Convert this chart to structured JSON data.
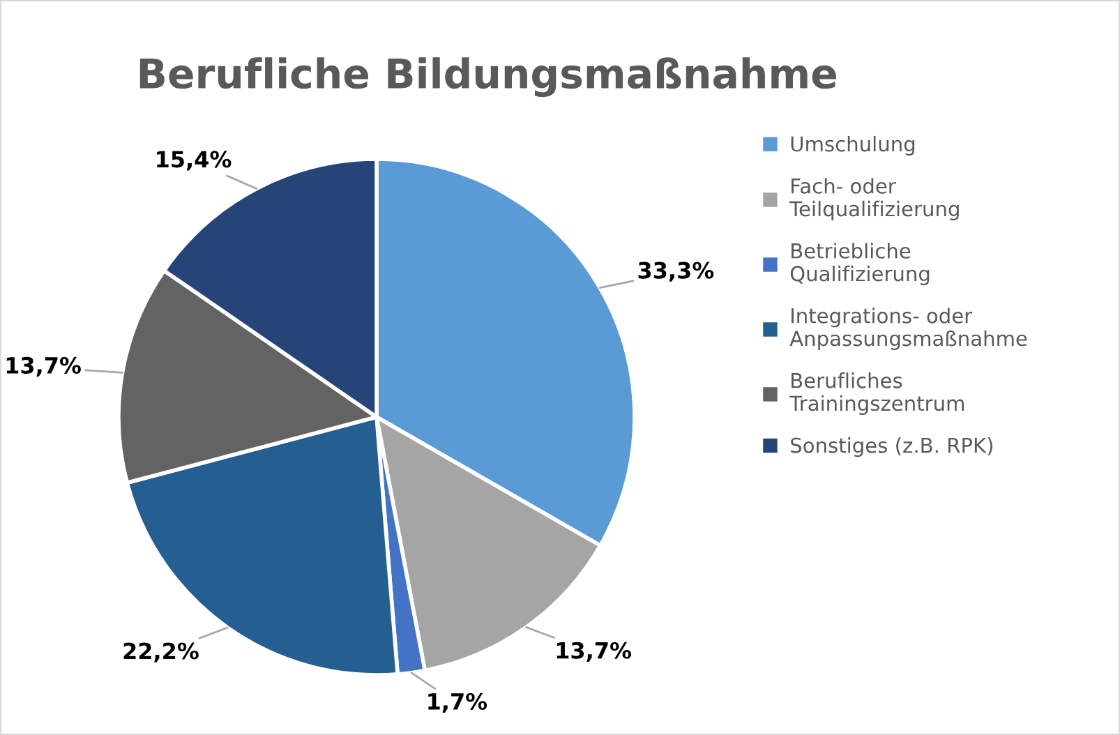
{
  "chart_data": {
    "type": "pie",
    "title": "Berufliche Bildungsmaßnahme",
    "categories": [
      "Umschulung",
      "Fach- oder\nTeilqualifizierung",
      "Betriebliche\nQualifizierung",
      "Integrations- oder\nAnpassungsmaßnahme",
      "Berufliches\nTrainingszentrum",
      "Sonstiges (z.B. RPK)"
    ],
    "values": [
      33.3,
      13.7,
      1.7,
      22.2,
      13.7,
      15.4
    ],
    "value_labels": [
      "33,3%",
      "13,7%",
      "1,7%",
      "22,2%",
      "13,7%",
      "15,4%"
    ],
    "colors": [
      "#5b9bd5",
      "#a5a5a5",
      "#4472c4",
      "#255e91",
      "#636363",
      "#264478"
    ],
    "legend": "right"
  }
}
